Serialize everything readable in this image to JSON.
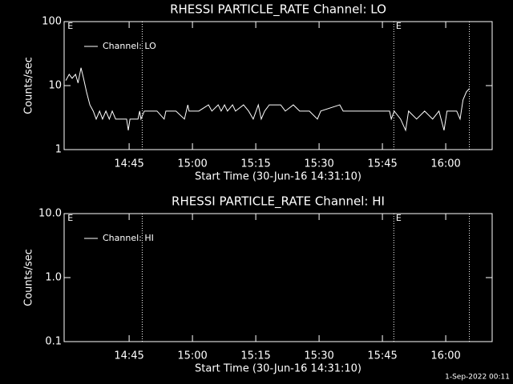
{
  "chart_data": [
    {
      "type": "line",
      "title": "RHESSI PARTICLE_RATE Channel: LO",
      "xlabel": "Start Time (30-Jun-16 14:31:10)",
      "ylabel": "Counts/sec",
      "log_y": true,
      "legend": "upper left",
      "xlim": [
        29.6,
        131.0
      ],
      "xticks": [
        {
          "value": 45,
          "label": "14:45"
        },
        {
          "value": 60,
          "label": "15:00"
        },
        {
          "value": 75,
          "label": "15:15"
        },
        {
          "value": 90,
          "label": "15:30"
        },
        {
          "value": 105,
          "label": "15:45"
        },
        {
          "value": 120,
          "label": "16:00"
        }
      ],
      "ylim": [
        1,
        100
      ],
      "yticks": [
        1,
        10,
        100
      ],
      "vlines": [
        48.1,
        107.7,
        125.6
      ],
      "annotations": [
        {
          "text": "E",
          "x": 30.4
        },
        {
          "text": "E",
          "x": 108.2
        }
      ],
      "series": [
        {
          "name": "Channel: LO",
          "color": "#ffffff",
          "x": [
            30.0,
            30.8,
            31.5,
            32.3,
            32.9,
            33.6,
            34.2,
            34.9,
            35.7,
            36.5,
            37.2,
            38.0,
            38.7,
            39.5,
            40.3,
            41.0,
            41.8,
            43.3,
            44.4,
            44.8,
            45.2,
            47.1,
            47.5,
            47.8,
            48.6,
            49.4,
            51.6,
            53.3,
            53.7,
            56.1,
            58.1,
            58.9,
            59.2,
            61.5,
            63.8,
            64.6,
            66.1,
            66.8,
            67.6,
            68.3,
            69.5,
            70.2,
            72.1,
            73.3,
            74.4,
            75.6,
            76.3,
            77.1,
            78.2,
            80.9,
            82.0,
            83.9,
            85.4,
            87.7,
            89.6,
            90.4,
            94.9,
            95.7,
            106.7,
            107.1,
            107.8,
            109.3,
            110.5,
            111.2,
            113.1,
            115.0,
            116.9,
            118.4,
            119.6,
            120.3,
            122.6,
            123.4,
            124.1,
            124.9,
            125.6
          ],
          "values": [
            12,
            15,
            13,
            15,
            11,
            19,
            13,
            8,
            5,
            4,
            3,
            4,
            3,
            4,
            3,
            4,
            3,
            3,
            3,
            2,
            3,
            3,
            4,
            3,
            4,
            4,
            4,
            3,
            4,
            4,
            3,
            5,
            4,
            4,
            5,
            4,
            5,
            4,
            5,
            4,
            5,
            4,
            5,
            4,
            3,
            5,
            3,
            4,
            5,
            5,
            4,
            5,
            4,
            4,
            3,
            4,
            5,
            4,
            4,
            3,
            4,
            3,
            2,
            4,
            3,
            4,
            3,
            4,
            2,
            4,
            4,
            3,
            6,
            8,
            9
          ]
        }
      ]
    },
    {
      "type": "line",
      "title": "RHESSI PARTICLE_RATE Channel: HI",
      "xlabel": "Start Time (30-Jun-16 14:31:10)",
      "ylabel": "Counts/sec",
      "log_y": true,
      "legend": "upper left",
      "xlim": [
        29.6,
        131.0
      ],
      "xticks": [
        {
          "value": 45,
          "label": "14:45"
        },
        {
          "value": 60,
          "label": "15:00"
        },
        {
          "value": 75,
          "label": "15:15"
        },
        {
          "value": 90,
          "label": "15:30"
        },
        {
          "value": 105,
          "label": "15:45"
        },
        {
          "value": 120,
          "label": "16:00"
        }
      ],
      "ylim": [
        0.1,
        10
      ],
      "yticks": [
        0.1,
        {
          "value": 1,
          "label": "1.0"
        },
        {
          "value": 10,
          "label": "10.0"
        }
      ],
      "vlines": [
        48.1,
        107.7,
        125.6
      ],
      "annotations": [
        {
          "text": "E",
          "x": 30.4
        },
        {
          "text": "E",
          "x": 108.2
        }
      ],
      "series": [
        {
          "name": "Channel: HI",
          "color": "#ffffff",
          "x": [],
          "values": []
        }
      ]
    }
  ],
  "footer": "1-Sep-2022 00:11"
}
